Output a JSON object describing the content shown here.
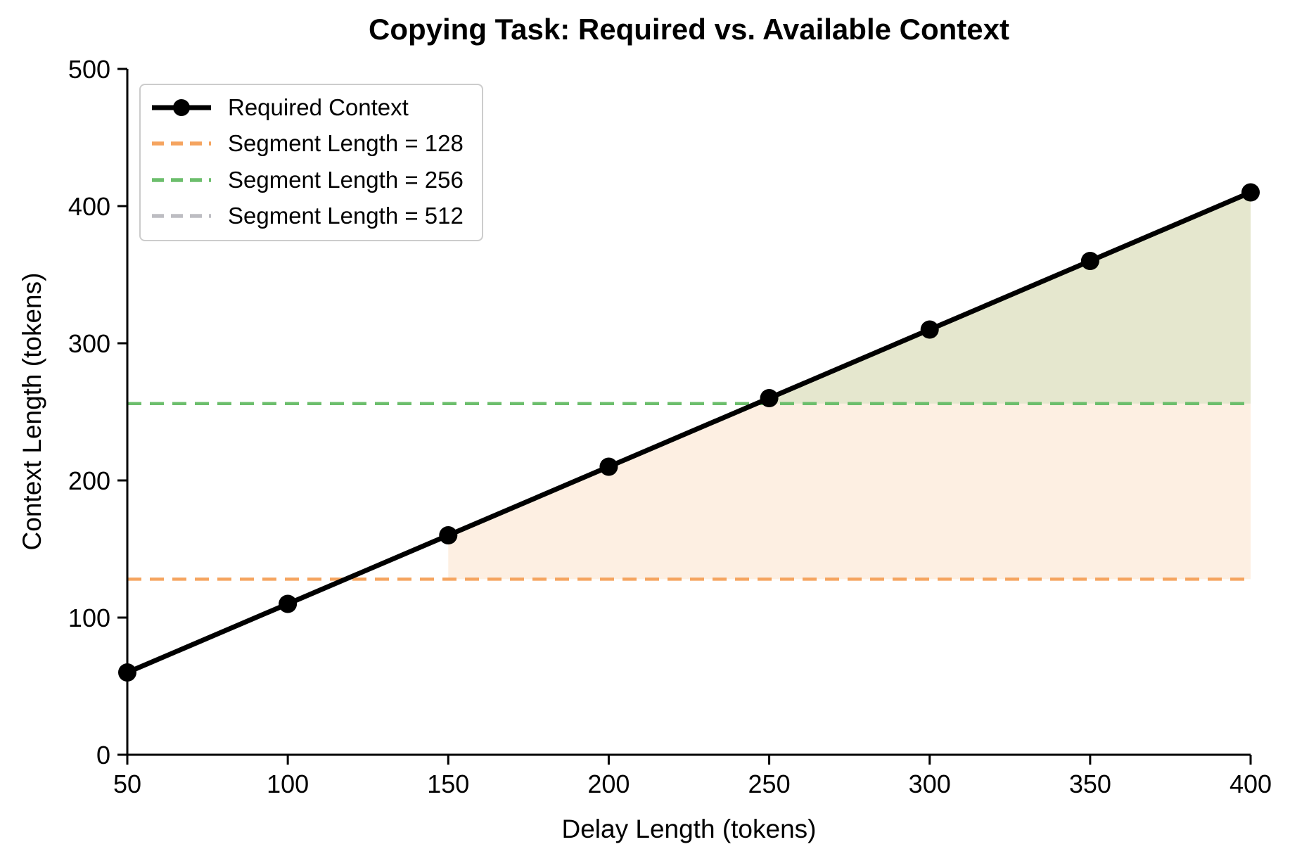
{
  "chart_data": {
    "type": "line",
    "title": "Copying Task: Required vs. Available Context",
    "xlabel": "Delay Length (tokens)",
    "ylabel": "Context Length (tokens)",
    "x": [
      50,
      100,
      150,
      200,
      250,
      300,
      350,
      400
    ],
    "series": [
      {
        "name": "Required Context",
        "values": [
          60,
          110,
          160,
          210,
          260,
          310,
          360,
          410
        ],
        "color": "#000000",
        "marker": "circle",
        "line_style": "solid"
      }
    ],
    "thresholds": [
      {
        "name": "Segment Length = 128",
        "value": 128,
        "color": "#F5A45F",
        "fill_color": "rgba(244,164,96,0.18)",
        "line_style": "dashed"
      },
      {
        "name": "Segment Length = 256",
        "value": 256,
        "color": "#6CBE6C",
        "fill_color": "rgba(108,190,108,0.16)",
        "line_style": "dashed"
      },
      {
        "name": "Segment Length = 512",
        "value": 512,
        "color": "#BDBDC2",
        "fill_color": "rgba(189,189,194,0.16)",
        "line_style": "dashed"
      }
    ],
    "xlim": [
      50,
      400
    ],
    "ylim": [
      0,
      500
    ],
    "xticks": [
      50,
      100,
      150,
      200,
      250,
      300,
      350,
      400
    ],
    "yticks": [
      0,
      100,
      200,
      300,
      400,
      500
    ],
    "grid": false,
    "legend_position": "upper left",
    "legend": [
      {
        "label": "Required Context",
        "type": "line-marker",
        "color": "#000000"
      },
      {
        "label": "Segment Length = 128",
        "type": "dash",
        "color": "#F5A45F"
      },
      {
        "label": "Segment Length = 256",
        "type": "dash",
        "color": "#6CBE6C"
      },
      {
        "label": "Segment Length = 512",
        "type": "dash",
        "color": "#BDBDC2"
      }
    ],
    "colors": {
      "text": "#000000",
      "spine": "#000000",
      "legend_border": "#CCCCCC",
      "background": "#FFFFFF"
    }
  }
}
